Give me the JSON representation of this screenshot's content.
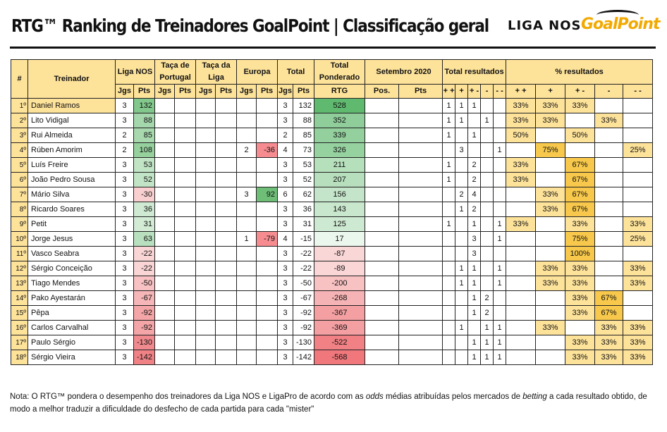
{
  "header": {
    "title": "RTG™ Ranking de Treinadores GoalPoint | Classificação geral",
    "logo_liga": "LIGA NOS",
    "logo_goalpoint": "GoalPoint"
  },
  "table": {
    "group_headers": {
      "pos": "#",
      "treinador": "Treinador",
      "liga": "Liga NOS",
      "taca_portugal": "Taça de Portugal",
      "taca_liga": "Taça da Liga",
      "europa": "Europa",
      "total": "Total",
      "total_ponderado": "Total Ponderado",
      "setembro": "Setembro 2020",
      "total_resultados": "Total resultados",
      "pct_resultados": "% resultados"
    },
    "sub_headers": {
      "jgs": "Jgs",
      "pts": "Pts",
      "rtg": "RTG",
      "pos": "Pos.",
      "set_pts": "Pts",
      "res": [
        "+ +",
        "+",
        "+ -",
        "-",
        "- -"
      ]
    },
    "rows": [
      {
        "pos": "1º",
        "name": "Daniel Ramos",
        "liga_j": "3",
        "liga_p": "132",
        "tp_j": "",
        "tp_p": "",
        "tl_j": "",
        "tl_p": "",
        "eu_j": "",
        "eu_p": "",
        "tot_j": "3",
        "tot_p": "132",
        "rtg": "528",
        "set_pos": "",
        "set_pts": "",
        "r1": "1",
        "r2": "1",
        "r3": "1",
        "r4": "",
        "r5": "",
        "p1": "33%",
        "p2": "33%",
        "p3": "33%",
        "p4": "",
        "p5": ""
      },
      {
        "pos": "2º",
        "name": "Lito Vidigal",
        "liga_j": "3",
        "liga_p": "88",
        "tp_j": "",
        "tp_p": "",
        "tl_j": "",
        "tl_p": "",
        "eu_j": "",
        "eu_p": "",
        "tot_j": "3",
        "tot_p": "88",
        "rtg": "352",
        "set_pos": "",
        "set_pts": "",
        "r1": "1",
        "r2": "1",
        "r3": "",
        "r4": "1",
        "r5": "",
        "p1": "33%",
        "p2": "33%",
        "p3": "",
        "p4": "33%",
        "p5": ""
      },
      {
        "pos": "3º",
        "name": "Rui Almeida",
        "liga_j": "2",
        "liga_p": "85",
        "tp_j": "",
        "tp_p": "",
        "tl_j": "",
        "tl_p": "",
        "eu_j": "",
        "eu_p": "",
        "tot_j": "2",
        "tot_p": "85",
        "rtg": "339",
        "set_pos": "",
        "set_pts": "",
        "r1": "1",
        "r2": "",
        "r3": "1",
        "r4": "",
        "r5": "",
        "p1": "50%",
        "p2": "",
        "p3": "50%",
        "p4": "",
        "p5": ""
      },
      {
        "pos": "4º",
        "name": "Rúben Amorim",
        "liga_j": "2",
        "liga_p": "108",
        "tp_j": "",
        "tp_p": "",
        "tl_j": "",
        "tl_p": "",
        "eu_j": "2",
        "eu_p": "-36",
        "tot_j": "4",
        "tot_p": "73",
        "rtg": "326",
        "set_pos": "",
        "set_pts": "",
        "r1": "",
        "r2": "3",
        "r3": "",
        "r4": "",
        "r5": "1",
        "p1": "",
        "p2": "75%",
        "p3": "",
        "p4": "",
        "p5": "25%"
      },
      {
        "pos": "5º",
        "name": "Luís Freire",
        "liga_j": "3",
        "liga_p": "53",
        "tp_j": "",
        "tp_p": "",
        "tl_j": "",
        "tl_p": "",
        "eu_j": "",
        "eu_p": "",
        "tot_j": "3",
        "tot_p": "53",
        "rtg": "211",
        "set_pos": "",
        "set_pts": "",
        "r1": "1",
        "r2": "",
        "r3": "2",
        "r4": "",
        "r5": "",
        "p1": "33%",
        "p2": "",
        "p3": "67%",
        "p4": "",
        "p5": ""
      },
      {
        "pos": "6º",
        "name": "João Pedro Sousa",
        "liga_j": "3",
        "liga_p": "52",
        "tp_j": "",
        "tp_p": "",
        "tl_j": "",
        "tl_p": "",
        "eu_j": "",
        "eu_p": "",
        "tot_j": "3",
        "tot_p": "52",
        "rtg": "207",
        "set_pos": "",
        "set_pts": "",
        "r1": "1",
        "r2": "",
        "r3": "2",
        "r4": "",
        "r5": "",
        "p1": "33%",
        "p2": "",
        "p3": "67%",
        "p4": "",
        "p5": ""
      },
      {
        "pos": "7º",
        "name": "Mário Silva",
        "liga_j": "3",
        "liga_p": "-30",
        "tp_j": "",
        "tp_p": "",
        "tl_j": "",
        "tl_p": "",
        "eu_j": "3",
        "eu_p": "92",
        "tot_j": "6",
        "tot_p": "62",
        "rtg": "156",
        "set_pos": "",
        "set_pts": "",
        "r1": "",
        "r2": "2",
        "r3": "4",
        "r4": "",
        "r5": "",
        "p1": "",
        "p2": "33%",
        "p3": "67%",
        "p4": "",
        "p5": ""
      },
      {
        "pos": "8º",
        "name": "Ricardo Soares",
        "liga_j": "3",
        "liga_p": "36",
        "tp_j": "",
        "tp_p": "",
        "tl_j": "",
        "tl_p": "",
        "eu_j": "",
        "eu_p": "",
        "tot_j": "3",
        "tot_p": "36",
        "rtg": "143",
        "set_pos": "",
        "set_pts": "",
        "r1": "",
        "r2": "1",
        "r3": "2",
        "r4": "",
        "r5": "",
        "p1": "",
        "p2": "33%",
        "p3": "67%",
        "p4": "",
        "p5": ""
      },
      {
        "pos": "9º",
        "name": "Petit",
        "liga_j": "3",
        "liga_p": "31",
        "tp_j": "",
        "tp_p": "",
        "tl_j": "",
        "tl_p": "",
        "eu_j": "",
        "eu_p": "",
        "tot_j": "3",
        "tot_p": "31",
        "rtg": "125",
        "set_pos": "",
        "set_pts": "",
        "r1": "1",
        "r2": "",
        "r3": "1",
        "r4": "",
        "r5": "1",
        "p1": "33%",
        "p2": "",
        "p3": "33%",
        "p4": "",
        "p5": "33%"
      },
      {
        "pos": "10º",
        "name": "Jorge Jesus",
        "liga_j": "3",
        "liga_p": "63",
        "tp_j": "",
        "tp_p": "",
        "tl_j": "",
        "tl_p": "",
        "eu_j": "1",
        "eu_p": "-79",
        "tot_j": "4",
        "tot_p": "-15",
        "rtg": "17",
        "set_pos": "",
        "set_pts": "",
        "r1": "",
        "r2": "",
        "r3": "3",
        "r4": "",
        "r5": "1",
        "p1": "",
        "p2": "",
        "p3": "75%",
        "p4": "",
        "p5": "25%"
      },
      {
        "pos": "11º",
        "name": "Vasco Seabra",
        "liga_j": "3",
        "liga_p": "-22",
        "tp_j": "",
        "tp_p": "",
        "tl_j": "",
        "tl_p": "",
        "eu_j": "",
        "eu_p": "",
        "tot_j": "3",
        "tot_p": "-22",
        "rtg": "-87",
        "set_pos": "",
        "set_pts": "",
        "r1": "",
        "r2": "",
        "r3": "3",
        "r4": "",
        "r5": "",
        "p1": "",
        "p2": "",
        "p3": "100%",
        "p4": "",
        "p5": ""
      },
      {
        "pos": "12º",
        "name": "Sérgio Conceição",
        "liga_j": "3",
        "liga_p": "-22",
        "tp_j": "",
        "tp_p": "",
        "tl_j": "",
        "tl_p": "",
        "eu_j": "",
        "eu_p": "",
        "tot_j": "3",
        "tot_p": "-22",
        "rtg": "-89",
        "set_pos": "",
        "set_pts": "",
        "r1": "",
        "r2": "1",
        "r3": "1",
        "r4": "",
        "r5": "1",
        "p1": "",
        "p2": "33%",
        "p3": "33%",
        "p4": "",
        "p5": "33%"
      },
      {
        "pos": "13º",
        "name": "Tiago Mendes",
        "liga_j": "3",
        "liga_p": "-50",
        "tp_j": "",
        "tp_p": "",
        "tl_j": "",
        "tl_p": "",
        "eu_j": "",
        "eu_p": "",
        "tot_j": "3",
        "tot_p": "-50",
        "rtg": "-200",
        "set_pos": "",
        "set_pts": "",
        "r1": "",
        "r2": "1",
        "r3": "1",
        "r4": "",
        "r5": "1",
        "p1": "",
        "p2": "33%",
        "p3": "33%",
        "p4": "",
        "p5": "33%"
      },
      {
        "pos": "14º",
        "name": "Pako Ayestarán",
        "liga_j": "3",
        "liga_p": "-67",
        "tp_j": "",
        "tp_p": "",
        "tl_j": "",
        "tl_p": "",
        "eu_j": "",
        "eu_p": "",
        "tot_j": "3",
        "tot_p": "-67",
        "rtg": "-268",
        "set_pos": "",
        "set_pts": "",
        "r1": "",
        "r2": "",
        "r3": "1",
        "r4": "2",
        "r5": "",
        "p1": "",
        "p2": "",
        "p3": "33%",
        "p4": "67%",
        "p5": ""
      },
      {
        "pos": "15º",
        "name": "Pêpa",
        "liga_j": "3",
        "liga_p": "-92",
        "tp_j": "",
        "tp_p": "",
        "tl_j": "",
        "tl_p": "",
        "eu_j": "",
        "eu_p": "",
        "tot_j": "3",
        "tot_p": "-92",
        "rtg": "-367",
        "set_pos": "",
        "set_pts": "",
        "r1": "",
        "r2": "",
        "r3": "1",
        "r4": "2",
        "r5": "",
        "p1": "",
        "p2": "",
        "p3": "33%",
        "p4": "67%",
        "p5": ""
      },
      {
        "pos": "16º",
        "name": "Carlos Carvalhal",
        "liga_j": "3",
        "liga_p": "-92",
        "tp_j": "",
        "tp_p": "",
        "tl_j": "",
        "tl_p": "",
        "eu_j": "",
        "eu_p": "",
        "tot_j": "3",
        "tot_p": "-92",
        "rtg": "-369",
        "set_pos": "",
        "set_pts": "",
        "r1": "",
        "r2": "1",
        "r3": "",
        "r4": "1",
        "r5": "1",
        "p1": "",
        "p2": "33%",
        "p3": "",
        "p4": "33%",
        "p5": "33%"
      },
      {
        "pos": "17º",
        "name": "Paulo Sérgio",
        "liga_j": "3",
        "liga_p": "-130",
        "tp_j": "",
        "tp_p": "",
        "tl_j": "",
        "tl_p": "",
        "eu_j": "",
        "eu_p": "",
        "tot_j": "3",
        "tot_p": "-130",
        "rtg": "-522",
        "set_pos": "",
        "set_pts": "",
        "r1": "",
        "r2": "",
        "r3": "1",
        "r4": "1",
        "r5": "1",
        "p1": "",
        "p2": "",
        "p3": "33%",
        "p4": "33%",
        "p5": "33%"
      },
      {
        "pos": "18º",
        "name": "Sérgio Vieira",
        "liga_j": "3",
        "liga_p": "-142",
        "tp_j": "",
        "tp_p": "",
        "tl_j": "",
        "tl_p": "",
        "eu_j": "",
        "eu_p": "",
        "tot_j": "3",
        "tot_p": "-142",
        "rtg": "-568",
        "set_pos": "",
        "set_pts": "",
        "r1": "",
        "r2": "",
        "r3": "1",
        "r4": "1",
        "r5": "1",
        "p1": "",
        "p2": "",
        "p3": "33%",
        "p4": "33%",
        "p5": "33%"
      }
    ]
  },
  "colors": {
    "header_bg": "#fde29a",
    "positive_max": "#5fb96f",
    "negative_max": "#f0787c",
    "pct_light": "#fde29a",
    "pct_strong": "#f7c84b"
  },
  "note": {
    "part1": "Nota: O RTG™ pondera o desempenho dos treinadores da Liga NOS e LigaPro de acordo com as ",
    "odds": "odds",
    "part2": " médias atribuídas pelos mercados de ",
    "betting": "betting",
    "part3": " a cada resultado obtido, de modo a melhor traduzir a dificuldade do desfecho de cada partida para cada \"mister\""
  }
}
